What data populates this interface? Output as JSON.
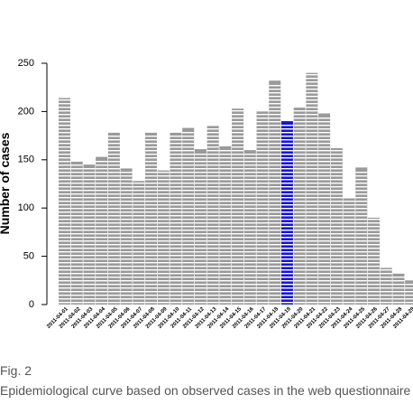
{
  "figure": {
    "label": "Fig. 2",
    "caption": "Epidemiological curve based on observed cases in the web questionnaire"
  },
  "colors": {
    "bar_fill": "#9a9a9a",
    "bar_stripe": "#ffffff",
    "highlight_fill": "#1515d6",
    "axis": "#000000"
  },
  "chart_data": {
    "type": "bar",
    "title": "",
    "xlabel": "",
    "ylabel": "Number of cases",
    "ylim": [
      0,
      250
    ],
    "yticks": [
      0,
      50,
      100,
      150,
      200,
      250
    ],
    "grid": false,
    "categories": [
      "2011-04-01",
      "2011-04-02",
      "2011-04-03",
      "2011-04-04",
      "2011-04-05",
      "2011-04-06",
      "2011-04-07",
      "2011-04-08",
      "2011-04-09",
      "2011-04-10",
      "2011-04-11",
      "2011-04-12",
      "2011-04-13",
      "2011-04-14",
      "2011-04-15",
      "2011-04-16",
      "2011-04-17",
      "2011-04-18",
      "2011-04-19",
      "2011-04-20",
      "2011-04-21",
      "2011-04-22",
      "2011-04-23",
      "2011-04-24",
      "2011-04-25",
      "2011-04-26",
      "2011-04-27",
      "2011-04-28",
      "2011-04-29"
    ],
    "values": [
      214,
      148,
      145,
      153,
      178,
      141,
      128,
      178,
      139,
      178,
      183,
      161,
      185,
      164,
      203,
      160,
      200,
      232,
      190,
      204,
      240,
      198,
      162,
      110,
      142,
      90,
      38,
      32,
      25
    ],
    "highlight_category": "2011-04-19"
  }
}
